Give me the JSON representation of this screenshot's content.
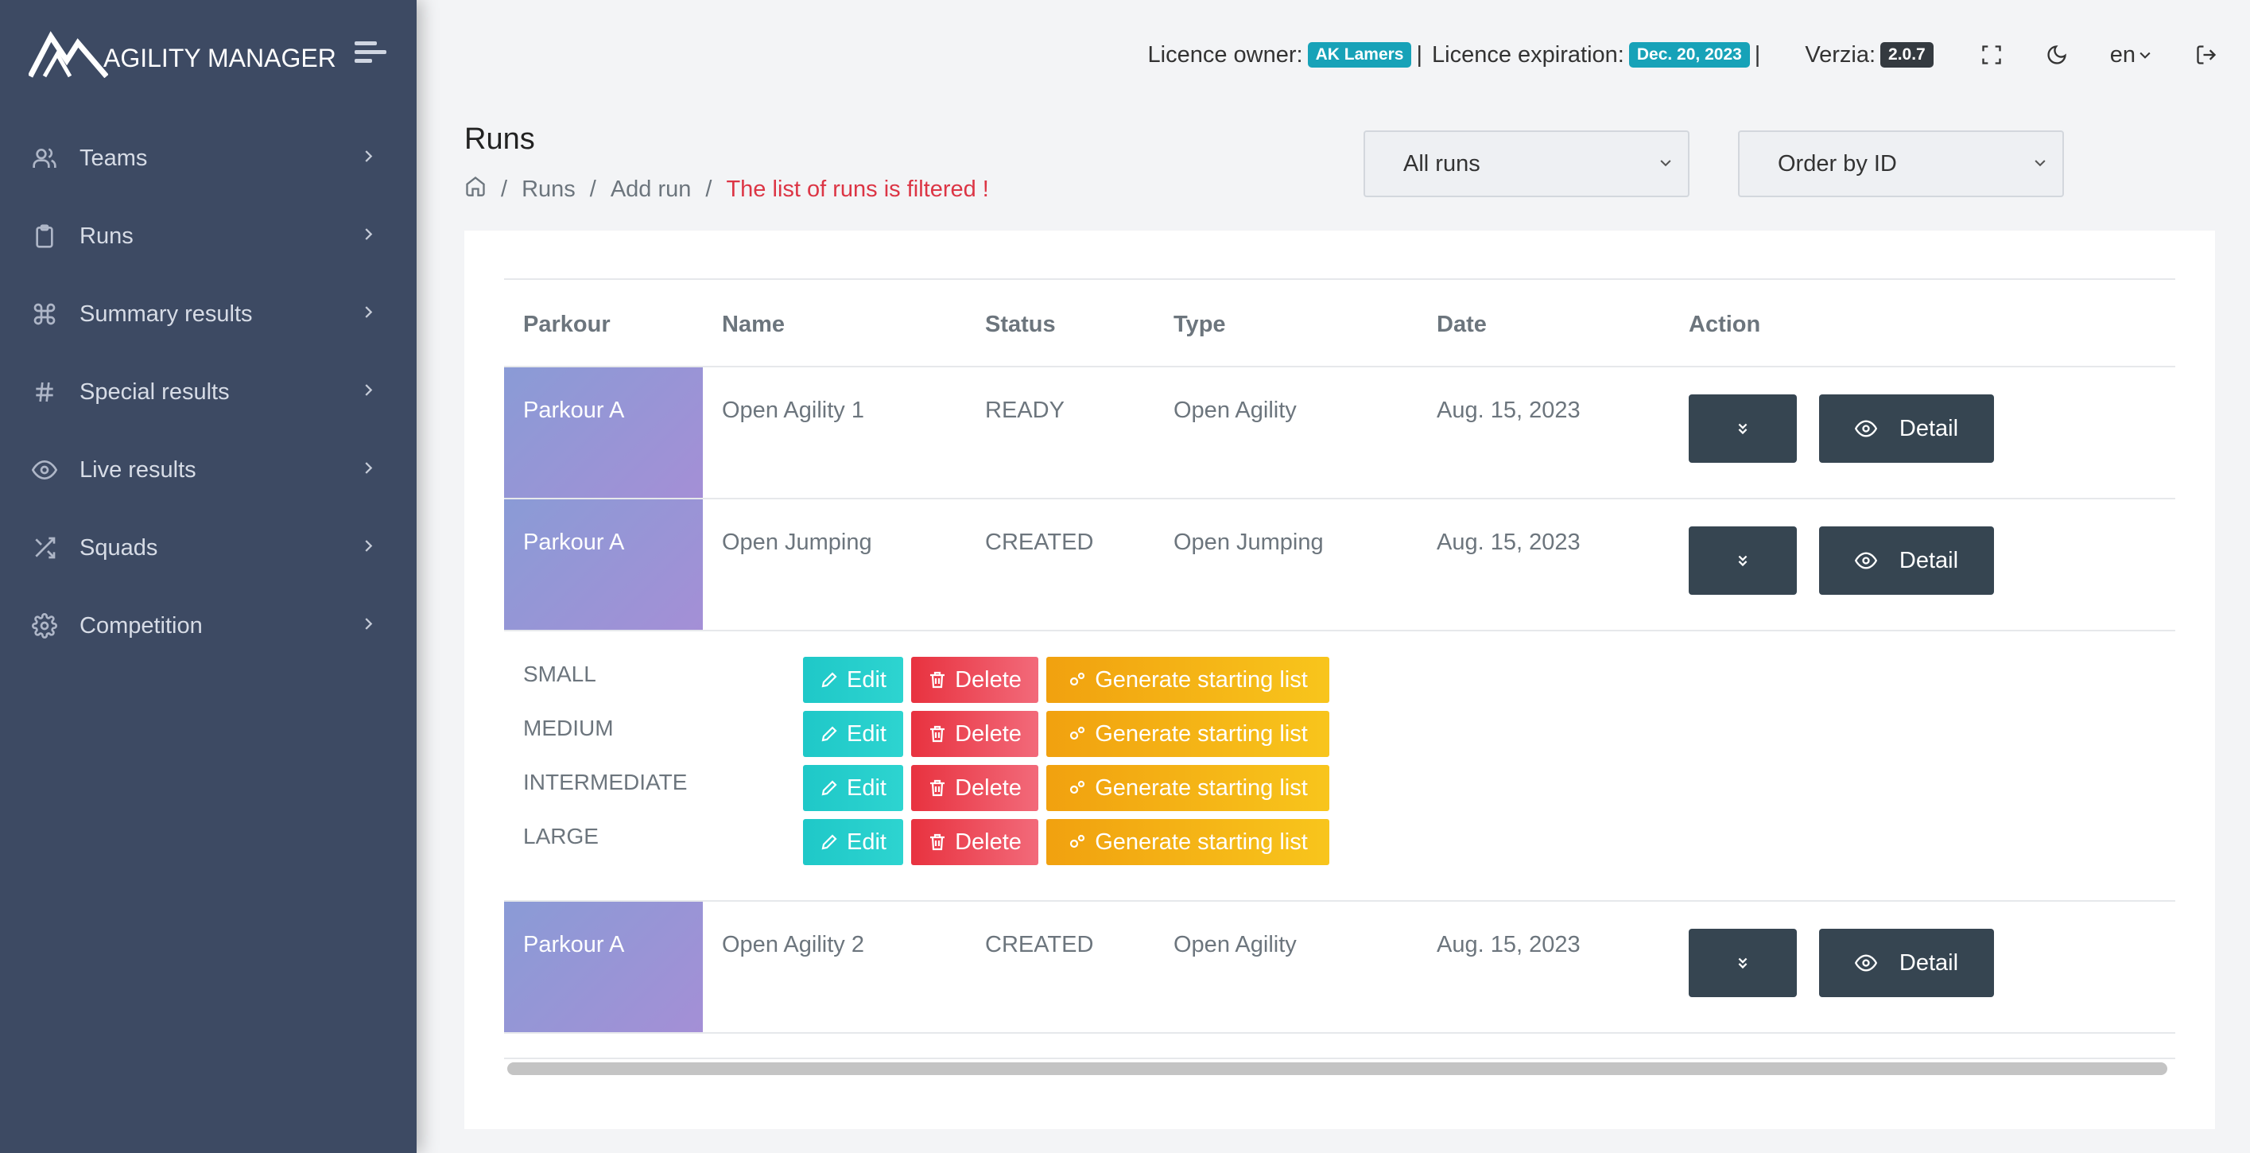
{
  "app": {
    "logo_text": "AGILITY MANAGER"
  },
  "sidebar": {
    "items": [
      {
        "label": "Teams",
        "icon": "users-icon"
      },
      {
        "label": "Runs",
        "icon": "clipboard-icon"
      },
      {
        "label": "Summary results",
        "icon": "command-icon"
      },
      {
        "label": "Special results",
        "icon": "hash-icon"
      },
      {
        "label": "Live results",
        "icon": "eye-icon"
      },
      {
        "label": "Squads",
        "icon": "shuffle-icon"
      },
      {
        "label": "Competition",
        "icon": "settings-icon"
      }
    ]
  },
  "topbar": {
    "licence_owner_label": "Licence owner:",
    "licence_owner": "AK Lamers",
    "sep1": "|",
    "licence_expiration_label": "Licence expiration:",
    "licence_expiration": "Dec. 20, 2023",
    "sep2": "|",
    "version_label": "Verzia:",
    "version": "2.0.7",
    "language": "en"
  },
  "page": {
    "title": "Runs",
    "breadcrumb": {
      "runs": "Runs",
      "add_run": "Add run",
      "filtered_notice": "The list of runs is filtered !"
    },
    "filter_select": "All runs",
    "order_select": "Order by ID"
  },
  "table": {
    "headers": {
      "parkour": "Parkour",
      "name": "Name",
      "status": "Status",
      "type": "Type",
      "date": "Date",
      "action": "Action"
    },
    "rows": [
      {
        "parkour": "Parkour A",
        "name": "Open Agility 1",
        "status": "READY",
        "type": "Open Agility",
        "date": "Aug. 15, 2023"
      },
      {
        "parkour": "Parkour A",
        "name": "Open Jumping",
        "status": "CREATED",
        "type": "Open Jumping",
        "date": "Aug. 15, 2023"
      },
      {
        "parkour": "Parkour A",
        "name": "Open Agility 2",
        "status": "CREATED",
        "type": "Open Agility",
        "date": "Aug. 15, 2023"
      }
    ],
    "detail_label": "Detail",
    "expanded": {
      "categories": [
        "SMALL",
        "MEDIUM",
        "INTERMEDIATE",
        "LARGE"
      ],
      "edit_label": "Edit",
      "delete_label": "Delete",
      "generate_label": "Generate starting list"
    }
  },
  "colors": {
    "sidebar": "#3d4a63",
    "badge": "#17a2b8",
    "dark_button": "#364551",
    "edit": "#1fc8c8",
    "delete": "#e8323f",
    "generate": "#f1a10f",
    "warning_text": "#dc3545"
  }
}
